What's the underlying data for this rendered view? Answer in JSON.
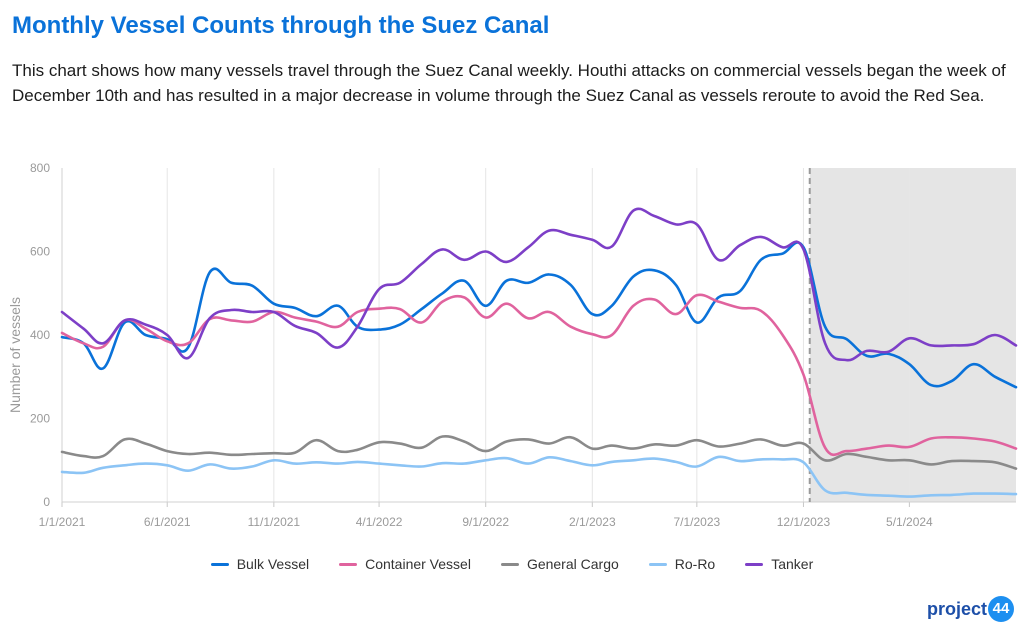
{
  "header": {
    "title": "Monthly Vessel Counts through the Suez Canal",
    "description": "This chart shows how many vessels travel through the Suez Canal weekly. Houthi attacks on commercial vessels began the week of December 10th and has resulted in a major decrease in volume through the Suez Canal as vessels reroute to avoid the Red Sea."
  },
  "logo": {
    "text": "project",
    "number": "44"
  },
  "chart_data": {
    "type": "line",
    "title": "",
    "ylabel": "Number of vessels",
    "xlabel": "",
    "ylim": [
      0,
      800
    ],
    "yticks": [
      0,
      200,
      400,
      600,
      800
    ],
    "xticks": [
      "1/1/2021",
      "6/1/2021",
      "11/1/2021",
      "4/1/2022",
      "9/1/2022",
      "2/1/2023",
      "7/1/2023",
      "12/1/2023",
      "5/1/2024"
    ],
    "x_range": [
      "1/1/2021",
      "10/1/2024"
    ],
    "grid": "vertical",
    "legend_position": "bottom",
    "annotations": [
      {
        "type": "shaded_region",
        "start": "12/10/2023",
        "end": "10/1/2024",
        "color": "#e5e5e5"
      },
      {
        "type": "dashed_vline",
        "date": "12/10/2023",
        "color": "#9a9a9a"
      }
    ],
    "series": [
      {
        "name": "Bulk Vessel",
        "color": "#0a72d9",
        "points": [
          [
            "1/1/2021",
            395
          ],
          [
            "2/1/2021",
            380
          ],
          [
            "3/1/2021",
            320
          ],
          [
            "4/1/2021",
            430
          ],
          [
            "5/1/2021",
            400
          ],
          [
            "6/1/2021",
            390
          ],
          [
            "7/1/2021",
            370
          ],
          [
            "8/1/2021",
            550
          ],
          [
            "9/1/2021",
            525
          ],
          [
            "10/1/2021",
            518
          ],
          [
            "11/1/2021",
            475
          ],
          [
            "12/1/2021",
            465
          ],
          [
            "1/1/2022",
            445
          ],
          [
            "2/1/2022",
            470
          ],
          [
            "3/1/2022",
            420
          ],
          [
            "4/1/2022",
            413
          ],
          [
            "5/1/2022",
            425
          ],
          [
            "6/1/2022",
            462
          ],
          [
            "7/1/2022",
            500
          ],
          [
            "8/1/2022",
            530
          ],
          [
            "9/1/2022",
            470
          ],
          [
            "10/1/2022",
            530
          ],
          [
            "11/1/2022",
            525
          ],
          [
            "12/1/2022",
            545
          ],
          [
            "1/1/2023",
            520
          ],
          [
            "2/1/2023",
            450
          ],
          [
            "3/1/2023",
            470
          ],
          [
            "4/1/2023",
            540
          ],
          [
            "5/1/2023",
            555
          ],
          [
            "6/1/2023",
            520
          ],
          [
            "7/1/2023",
            430
          ],
          [
            "8/1/2023",
            490
          ],
          [
            "9/1/2023",
            505
          ],
          [
            "10/1/2023",
            580
          ],
          [
            "11/1/2023",
            595
          ],
          [
            "12/1/2023",
            610
          ],
          [
            "1/1/2024",
            420
          ],
          [
            "2/1/2024",
            390
          ],
          [
            "3/1/2024",
            350
          ],
          [
            "4/1/2024",
            355
          ],
          [
            "5/1/2024",
            330
          ],
          [
            "6/1/2024",
            280
          ],
          [
            "7/1/2024",
            290
          ],
          [
            "8/1/2024",
            330
          ],
          [
            "9/1/2024",
            300
          ],
          [
            "10/1/2024",
            275
          ]
        ]
      },
      {
        "name": "Container Vessel",
        "color": "#e0639e",
        "points": [
          [
            "1/1/2021",
            405
          ],
          [
            "2/1/2021",
            380
          ],
          [
            "3/1/2021",
            372
          ],
          [
            "4/1/2021",
            435
          ],
          [
            "5/1/2021",
            415
          ],
          [
            "6/1/2021",
            385
          ],
          [
            "7/1/2021",
            380
          ],
          [
            "8/1/2021",
            438
          ],
          [
            "9/1/2021",
            435
          ],
          [
            "10/1/2021",
            432
          ],
          [
            "11/1/2021",
            455
          ],
          [
            "12/1/2021",
            442
          ],
          [
            "1/1/2022",
            432
          ],
          [
            "2/1/2022",
            420
          ],
          [
            "3/1/2022",
            455
          ],
          [
            "4/1/2022",
            463
          ],
          [
            "5/1/2022",
            462
          ],
          [
            "6/1/2022",
            430
          ],
          [
            "7/1/2022",
            480
          ],
          [
            "8/1/2022",
            490
          ],
          [
            "9/1/2022",
            442
          ],
          [
            "10/1/2022",
            475
          ],
          [
            "11/1/2022",
            440
          ],
          [
            "12/1/2022",
            455
          ],
          [
            "1/1/2023",
            420
          ],
          [
            "2/1/2023",
            402
          ],
          [
            "3/1/2023",
            400
          ],
          [
            "4/1/2023",
            470
          ],
          [
            "5/1/2023",
            485
          ],
          [
            "6/1/2023",
            450
          ],
          [
            "7/1/2023",
            495
          ],
          [
            "8/1/2023",
            480
          ],
          [
            "9/1/2023",
            465
          ],
          [
            "10/1/2023",
            458
          ],
          [
            "11/1/2023",
            400
          ],
          [
            "12/1/2023",
            305
          ],
          [
            "1/1/2024",
            130
          ],
          [
            "2/1/2024",
            122
          ],
          [
            "3/1/2024",
            128
          ],
          [
            "4/1/2024",
            135
          ],
          [
            "5/1/2024",
            132
          ],
          [
            "6/1/2024",
            152
          ],
          [
            "7/1/2024",
            155
          ],
          [
            "8/1/2024",
            152
          ],
          [
            "9/1/2024",
            145
          ],
          [
            "10/1/2024",
            128
          ]
        ]
      },
      {
        "name": "General Cargo",
        "color": "#8a8a8a",
        "points": [
          [
            "1/1/2021",
            120
          ],
          [
            "2/1/2021",
            110
          ],
          [
            "3/1/2021",
            110
          ],
          [
            "4/1/2021",
            150
          ],
          [
            "5/1/2021",
            140
          ],
          [
            "6/1/2021",
            122
          ],
          [
            "7/1/2021",
            115
          ],
          [
            "8/1/2021",
            118
          ],
          [
            "9/1/2021",
            113
          ],
          [
            "10/1/2021",
            115
          ],
          [
            "11/1/2021",
            117
          ],
          [
            "12/1/2021",
            118
          ],
          [
            "1/1/2022",
            148
          ],
          [
            "2/1/2022",
            122
          ],
          [
            "3/1/2022",
            125
          ],
          [
            "4/1/2022",
            143
          ],
          [
            "5/1/2022",
            140
          ],
          [
            "6/1/2022",
            130
          ],
          [
            "7/1/2022",
            157
          ],
          [
            "8/1/2022",
            145
          ],
          [
            "9/1/2022",
            122
          ],
          [
            "10/1/2022",
            145
          ],
          [
            "11/1/2022",
            150
          ],
          [
            "12/1/2022",
            140
          ],
          [
            "1/1/2023",
            155
          ],
          [
            "2/1/2023",
            128
          ],
          [
            "3/1/2023",
            135
          ],
          [
            "4/1/2023",
            128
          ],
          [
            "5/1/2023",
            138
          ],
          [
            "6/1/2023",
            135
          ],
          [
            "7/1/2023",
            148
          ],
          [
            "8/1/2023",
            133
          ],
          [
            "9/1/2023",
            140
          ],
          [
            "10/1/2023",
            150
          ],
          [
            "11/1/2023",
            135
          ],
          [
            "12/1/2023",
            140
          ],
          [
            "1/1/2024",
            100
          ],
          [
            "2/1/2024",
            115
          ],
          [
            "3/1/2024",
            108
          ],
          [
            "4/1/2024",
            100
          ],
          [
            "5/1/2024",
            100
          ],
          [
            "6/1/2024",
            90
          ],
          [
            "7/1/2024",
            98
          ],
          [
            "8/1/2024",
            98
          ],
          [
            "9/1/2024",
            95
          ],
          [
            "10/1/2024",
            80
          ]
        ]
      },
      {
        "name": "Ro-Ro",
        "color": "#8cc4f5",
        "points": [
          [
            "1/1/2021",
            72
          ],
          [
            "2/1/2021",
            70
          ],
          [
            "3/1/2021",
            82
          ],
          [
            "4/1/2021",
            88
          ],
          [
            "5/1/2021",
            92
          ],
          [
            "6/1/2021",
            88
          ],
          [
            "7/1/2021",
            75
          ],
          [
            "8/1/2021",
            90
          ],
          [
            "9/1/2021",
            80
          ],
          [
            "10/1/2021",
            85
          ],
          [
            "11/1/2021",
            100
          ],
          [
            "12/1/2021",
            92
          ],
          [
            "1/1/2022",
            95
          ],
          [
            "2/1/2022",
            92
          ],
          [
            "3/1/2022",
            96
          ],
          [
            "4/1/2022",
            92
          ],
          [
            "5/1/2022",
            88
          ],
          [
            "6/1/2022",
            85
          ],
          [
            "7/1/2022",
            93
          ],
          [
            "8/1/2022",
            92
          ],
          [
            "9/1/2022",
            100
          ],
          [
            "10/1/2022",
            105
          ],
          [
            "11/1/2022",
            92
          ],
          [
            "12/1/2022",
            107
          ],
          [
            "1/1/2023",
            98
          ],
          [
            "2/1/2023",
            88
          ],
          [
            "3/1/2023",
            96
          ],
          [
            "4/1/2023",
            100
          ],
          [
            "5/1/2023",
            104
          ],
          [
            "6/1/2023",
            96
          ],
          [
            "7/1/2023",
            85
          ],
          [
            "8/1/2023",
            108
          ],
          [
            "9/1/2023",
            98
          ],
          [
            "10/1/2023",
            102
          ],
          [
            "11/1/2023",
            102
          ],
          [
            "12/1/2023",
            95
          ],
          [
            "1/1/2024",
            28
          ],
          [
            "2/1/2024",
            22
          ],
          [
            "3/1/2024",
            17
          ],
          [
            "4/1/2024",
            15
          ],
          [
            "5/1/2024",
            13
          ],
          [
            "6/1/2024",
            16
          ],
          [
            "7/1/2024",
            17
          ],
          [
            "8/1/2024",
            20
          ],
          [
            "9/1/2024",
            20
          ],
          [
            "10/1/2024",
            19
          ]
        ]
      },
      {
        "name": "Tanker",
        "color": "#7d3fc7",
        "points": [
          [
            "1/1/2021",
            455
          ],
          [
            "2/1/2021",
            415
          ],
          [
            "3/1/2021",
            380
          ],
          [
            "4/1/2021",
            435
          ],
          [
            "5/1/2021",
            425
          ],
          [
            "6/1/2021",
            400
          ],
          [
            "7/1/2021",
            345
          ],
          [
            "8/1/2021",
            440
          ],
          [
            "9/1/2021",
            460
          ],
          [
            "10/1/2021",
            455
          ],
          [
            "11/1/2021",
            455
          ],
          [
            "12/1/2021",
            422
          ],
          [
            "1/1/2022",
            405
          ],
          [
            "2/1/2022",
            370
          ],
          [
            "3/1/2022",
            420
          ],
          [
            "4/1/2022",
            510
          ],
          [
            "5/1/2022",
            525
          ],
          [
            "6/1/2022",
            570
          ],
          [
            "7/1/2022",
            605
          ],
          [
            "8/1/2022",
            580
          ],
          [
            "9/1/2022",
            600
          ],
          [
            "10/1/2022",
            575
          ],
          [
            "11/1/2022",
            610
          ],
          [
            "12/1/2022",
            650
          ],
          [
            "1/1/2023",
            640
          ],
          [
            "2/1/2023",
            628
          ],
          [
            "3/1/2023",
            612
          ],
          [
            "4/1/2023",
            698
          ],
          [
            "5/1/2023",
            685
          ],
          [
            "6/1/2023",
            665
          ],
          [
            "7/1/2023",
            665
          ],
          [
            "8/1/2023",
            580
          ],
          [
            "9/1/2023",
            615
          ],
          [
            "10/1/2023",
            635
          ],
          [
            "11/1/2023",
            610
          ],
          [
            "12/1/2023",
            605
          ],
          [
            "1/1/2024",
            380
          ],
          [
            "2/1/2024",
            340
          ],
          [
            "3/1/2024",
            362
          ],
          [
            "4/1/2024",
            360
          ],
          [
            "5/1/2024",
            392
          ],
          [
            "6/1/2024",
            375
          ],
          [
            "7/1/2024",
            375
          ],
          [
            "8/1/2024",
            378
          ],
          [
            "9/1/2024",
            400
          ],
          [
            "10/1/2024",
            375
          ]
        ]
      }
    ]
  }
}
